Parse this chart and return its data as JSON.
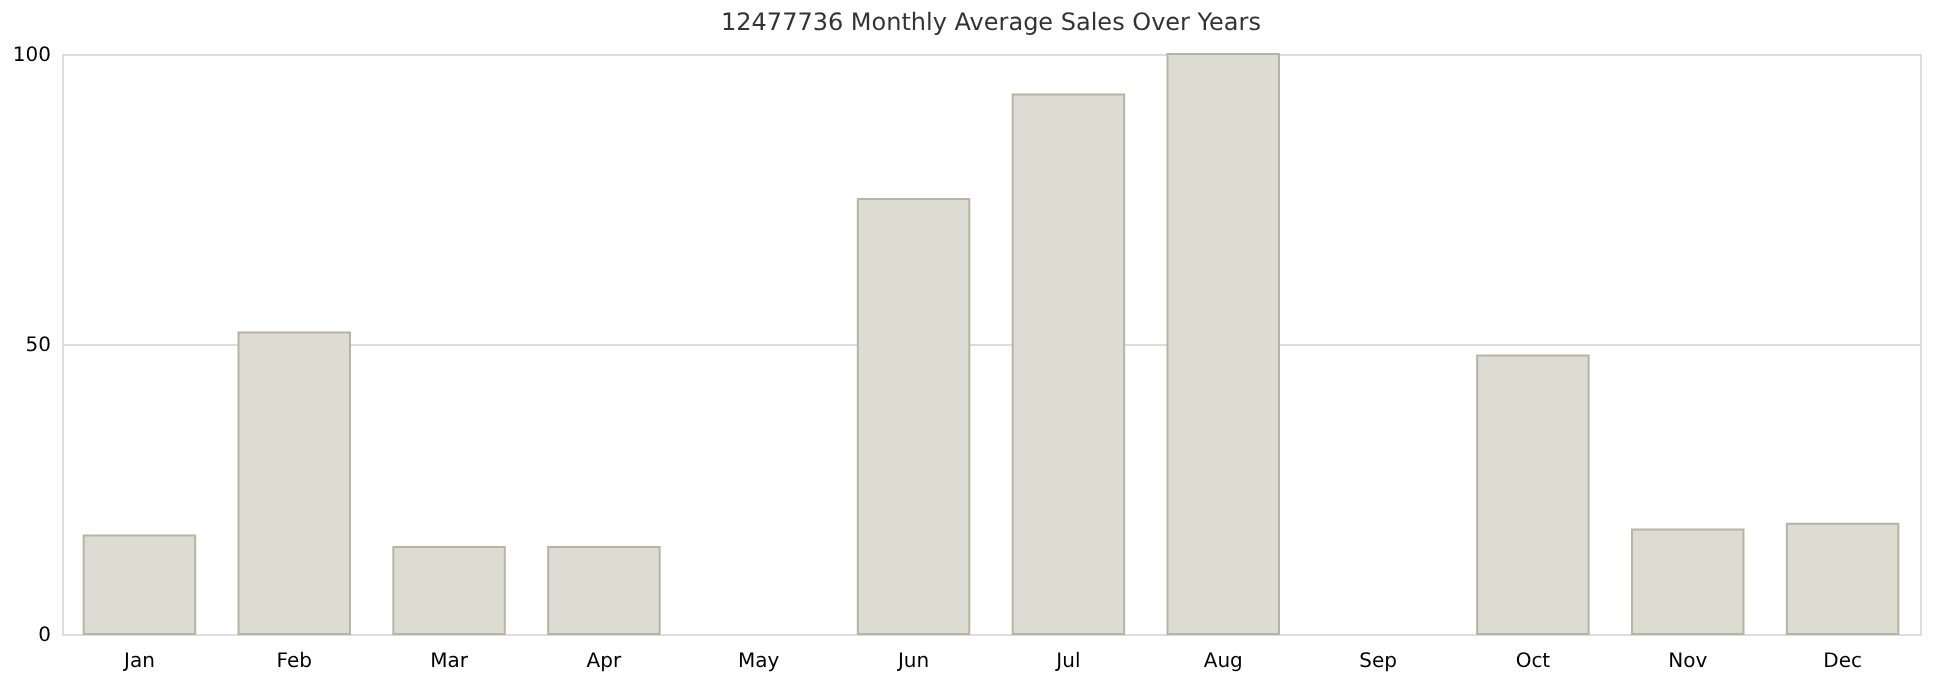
{
  "chart_data": {
    "type": "bar",
    "title": "12477736 Monthly Average Sales Over Years",
    "categories": [
      "Jan",
      "Feb",
      "Mar",
      "Apr",
      "May",
      "Jun",
      "Jul",
      "Aug",
      "Sep",
      "Oct",
      "Nov",
      "Dec"
    ],
    "values": [
      17,
      52,
      15,
      15,
      0,
      75,
      93,
      100,
      0,
      48,
      18,
      19
    ],
    "color": "#dcdcd2",
    "ylim": [
      0,
      100
    ],
    "yticks": [
      0,
      50,
      100
    ],
    "grid": "y"
  }
}
